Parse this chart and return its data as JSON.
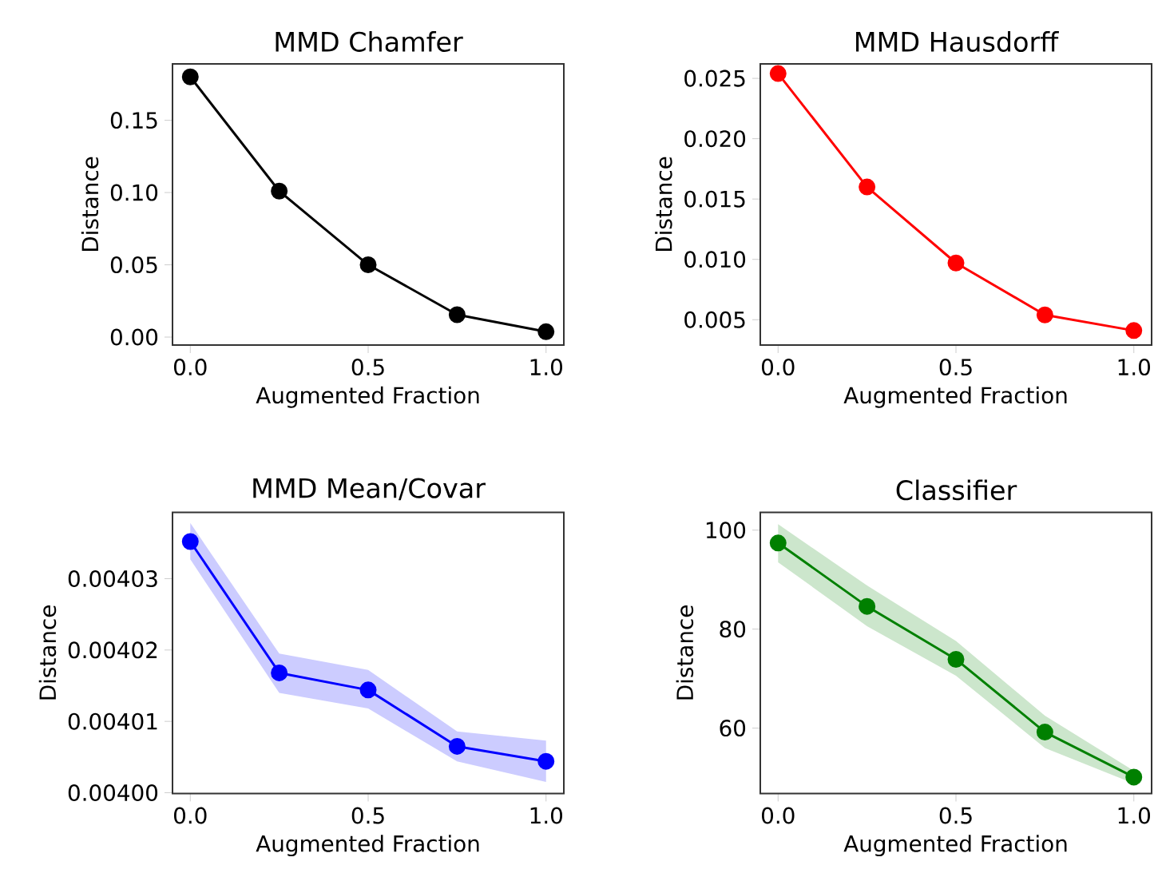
{
  "chart_data": [
    {
      "type": "line",
      "title": "MMD Chamfer",
      "xlabel": "Augmented Fraction",
      "ylabel": "Distance",
      "x": [
        0,
        0.25,
        0.5,
        0.75,
        1.0
      ],
      "series": [
        {
          "color": "#000000",
          "values": [
            0.18,
            0.101,
            0.05,
            0.0155,
            0.0037
          ]
        }
      ],
      "xlim": [
        -0.05,
        1.05
      ],
      "ylim": [
        -0.0055,
        0.189
      ],
      "xticks": [
        {
          "value": 0,
          "label": "0.0"
        },
        {
          "value": 0.5,
          "label": "0.5"
        },
        {
          "value": 1,
          "label": "1.0"
        }
      ],
      "yticks": [
        {
          "value": 0,
          "label": "0.00"
        },
        {
          "value": 0.05,
          "label": "0.05"
        },
        {
          "value": 0.1,
          "label": "0.10"
        },
        {
          "value": 0.15,
          "label": "0.15"
        }
      ],
      "marker": "circle",
      "line_style": "solid"
    },
    {
      "type": "line",
      "title": "MMD Hausdorff",
      "xlabel": "Augmented Fraction",
      "ylabel": "Distance",
      "x": [
        0,
        0.25,
        0.5,
        0.75,
        1.0
      ],
      "series": [
        {
          "color": "#ff0000",
          "values": [
            0.0254,
            0.016,
            0.0097,
            0.0054,
            0.0041
          ]
        }
      ],
      "xlim": [
        -0.05,
        1.05
      ],
      "ylim": [
        0.0029,
        0.0262
      ],
      "xticks": [
        {
          "value": 0,
          "label": "0.0"
        },
        {
          "value": 0.5,
          "label": "0.5"
        },
        {
          "value": 1,
          "label": "1.0"
        }
      ],
      "yticks": [
        0.005,
        {
          "value": 0.01,
          "label": "0.010"
        },
        0.015,
        {
          "value": 0.02,
          "label": "0.020"
        },
        0.025
      ],
      "marker": "circle",
      "line_style": "solid"
    },
    {
      "type": "line",
      "title": "MMD Mean/Covar",
      "xlabel": "Augmented Fraction",
      "ylabel": "Distance",
      "x": [
        0,
        0.25,
        0.5,
        0.75,
        1.0
      ],
      "series": [
        {
          "color": "#0000ff",
          "values": [
            0.0040352,
            0.0040168,
            0.0040144,
            0.0040065,
            0.0040044
          ],
          "lower": [
            0.0040327,
            0.004014,
            0.0040118,
            0.0040044,
            0.0040015
          ],
          "upper": [
            0.0040378,
            0.0040195,
            0.0040172,
            0.0040086,
            0.0040073
          ]
        }
      ],
      "xlim": [
        -0.05,
        1.05
      ],
      "ylim": [
        0.0039999,
        0.0040393
      ],
      "xticks": [
        {
          "value": 0,
          "label": "0.0"
        },
        {
          "value": 0.5,
          "label": "0.5"
        },
        {
          "value": 1,
          "label": "1.0"
        }
      ],
      "yticks": [
        {
          "value": 0.004,
          "label": "0.00400"
        },
        0.00401,
        0.00402,
        0.00403
      ],
      "marker": "circle",
      "line_style": "solid"
    },
    {
      "type": "line",
      "title": "Classifier",
      "xlabel": "Augmented Fraction",
      "ylabel": "Distance",
      "x": [
        0,
        0.25,
        0.5,
        0.75,
        1.0
      ],
      "series": [
        {
          "color": "#008000",
          "values": [
            97.4,
            84.6,
            73.9,
            59.2,
            50.1
          ],
          "lower": [
            93.5,
            80.6,
            70.6,
            56.0,
            48.8
          ],
          "upper": [
            101.2,
            88.8,
            77.6,
            62.5,
            51.4
          ]
        }
      ],
      "xlim": [
        -0.05,
        1.05
      ],
      "ylim": [
        46.8,
        103.6
      ],
      "xticks": [
        {
          "value": 0,
          "label": "0.0"
        },
        {
          "value": 0.5,
          "label": "0.5"
        },
        {
          "value": 1,
          "label": "1.0"
        }
      ],
      "yticks": [
        60,
        80,
        100
      ],
      "marker": "circle",
      "line_style": "solid"
    }
  ]
}
